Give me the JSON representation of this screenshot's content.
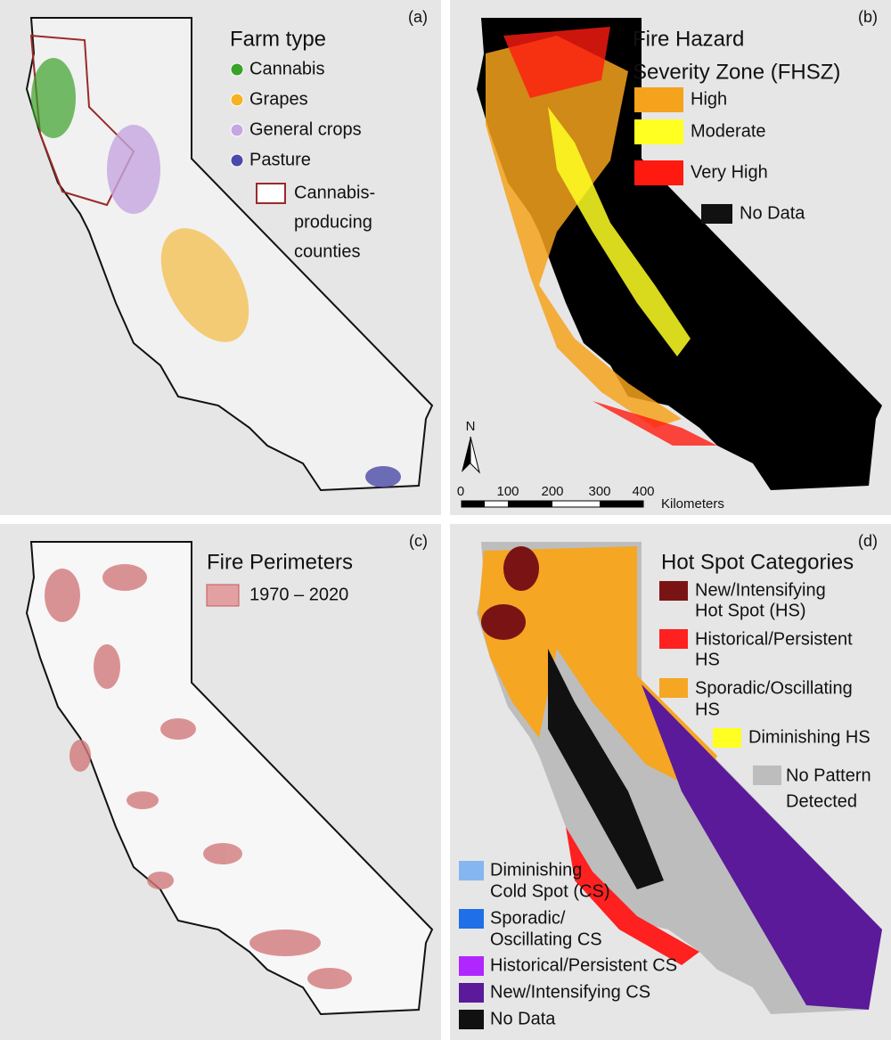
{
  "panels": [
    {
      "label": "(a)",
      "title": [
        "Farm type"
      ],
      "items": [
        {
          "label": [
            "Cannabis"
          ],
          "color": "#3aa12a"
        },
        {
          "label": [
            "Grapes"
          ],
          "color": "#f5b323"
        },
        {
          "label": [
            "General crops"
          ],
          "color": "#c6a6e0"
        },
        {
          "label": [
            "Pasture"
          ],
          "color": "#4a4aa8"
        },
        {
          "label": [
            "Cannabis-",
            "producing",
            "counties"
          ],
          "color": "#9b2a2a"
        }
      ]
    },
    {
      "label": "(b)",
      "title": [
        "Fire Hazard",
        "Severity Zone (FHSZ)"
      ],
      "items": [
        {
          "label": [
            "High"
          ],
          "color": "#f5a21c"
        },
        {
          "label": [
            "Moderate"
          ],
          "color": "#ffff22"
        },
        {
          "label": [
            "Very High"
          ],
          "color": "#ff1a10"
        },
        {
          "label": [
            "No Data"
          ],
          "color": "#111111"
        }
      ],
      "north": "N",
      "scale": [
        "0",
        "100",
        "200",
        "300",
        "400"
      ],
      "scale_unit": "Kilometers"
    },
    {
      "label": "(c)",
      "title": [
        "Fire Perimeters"
      ],
      "items": [
        {
          "label": [
            "1970 – 2020"
          ],
          "color": "#e3a0a2"
        }
      ]
    },
    {
      "label": "(d)",
      "title": [
        "Hot Spot Categories"
      ],
      "items": [
        {
          "label": [
            "New/Intensifying",
            "Hot Spot (HS)"
          ],
          "color": "#7a1414"
        },
        {
          "label": [
            "Historical/Persistent",
            "HS"
          ],
          "color": "#ff2020"
        },
        {
          "label": [
            "Sporadic/Oscillating",
            "HS"
          ],
          "color": "#f5a623"
        },
        {
          "label": [
            "Diminishing HS"
          ],
          "color": "#ffff22"
        },
        {
          "label": [
            "No Pattern",
            "Detected"
          ],
          "color": "#bdbdbd"
        },
        {
          "label": [
            "Diminishing",
            "Cold Spot (CS)"
          ],
          "color": "#85b6f0"
        },
        {
          "label": [
            "Sporadic/",
            "Oscillating CS"
          ],
          "color": "#1f6fe8"
        },
        {
          "label": [
            "Historical/Persistent CS"
          ],
          "color": "#b026ff"
        },
        {
          "label": [
            "New/Intensifying CS"
          ],
          "color": "#5a1a9a"
        },
        {
          "label": [
            "No Data"
          ],
          "color": "#111111"
        }
      ]
    }
  ]
}
